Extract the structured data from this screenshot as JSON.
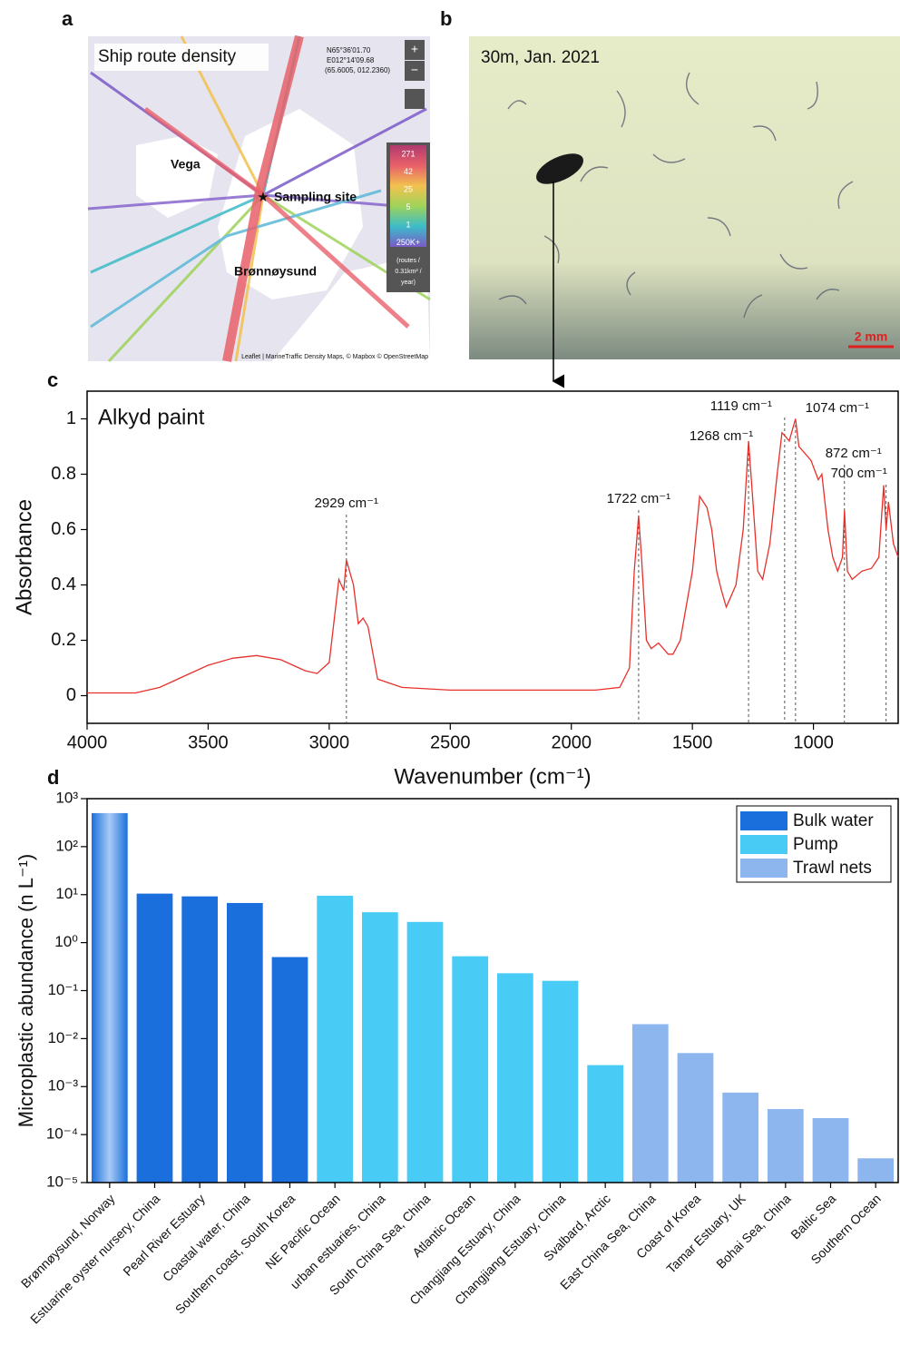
{
  "panel_labels": [
    "a",
    "b",
    "c",
    "d"
  ],
  "map": {
    "title": "Ship route density",
    "coordinates": [
      "N65°36'01.70",
      "E012°14'09.68",
      "(65.6005, 012.2360)"
    ],
    "zoom": [
      "+",
      "−"
    ],
    "places": [
      "Vega",
      "Sampling site",
      "Brønnøysund"
    ],
    "scale_labels": [
      "271",
      "42",
      "25",
      "5",
      "1",
      "250K+"
    ],
    "scale_unit": [
      "(routes /",
      "0.31km² /",
      "year)"
    ],
    "attribution": "Leaflet | MarineTraffic Density Maps, © Mapbox © OpenStreetMap"
  },
  "photo": {
    "caption": "30m, Jan. 2021",
    "scale_bar": "2 mm"
  },
  "chart_data": [
    {
      "type": "line",
      "title": "Alkyd paint",
      "x_label": "Wavenumber (cm⁻¹)",
      "y_label": "Absorbance",
      "color": "#e8302a",
      "xlim": [
        4000,
        650
      ],
      "ylim": [
        -0.1,
        1.1
      ],
      "xticks": [
        4000,
        3500,
        3000,
        2500,
        2000,
        1500,
        1000
      ],
      "yticks": [
        0,
        0.2,
        0.4,
        0.6,
        0.8,
        1
      ],
      "x": [
        4000,
        3800,
        3700,
        3600,
        3500,
        3400,
        3300,
        3200,
        3100,
        3050,
        3000,
        2960,
        2940,
        2929,
        2900,
        2880,
        2860,
        2840,
        2800,
        2700,
        2600,
        2500,
        2400,
        2200,
        2000,
        1900,
        1800,
        1760,
        1740,
        1722,
        1710,
        1690,
        1670,
        1640,
        1600,
        1580,
        1550,
        1500,
        1470,
        1455,
        1440,
        1420,
        1400,
        1380,
        1360,
        1340,
        1320,
        1290,
        1268,
        1250,
        1230,
        1210,
        1180,
        1150,
        1130,
        1119,
        1100,
        1074,
        1060,
        1040,
        1010,
        980,
        965,
        940,
        920,
        900,
        880,
        872,
        860,
        840,
        800,
        760,
        730,
        710,
        700,
        690,
        670,
        650
      ],
      "values": [
        0.01,
        0.01,
        0.03,
        0.07,
        0.11,
        0.135,
        0.145,
        0.13,
        0.09,
        0.08,
        0.12,
        0.42,
        0.38,
        0.49,
        0.4,
        0.26,
        0.28,
        0.25,
        0.06,
        0.03,
        0.025,
        0.02,
        0.02,
        0.02,
        0.02,
        0.02,
        0.03,
        0.1,
        0.45,
        0.65,
        0.5,
        0.2,
        0.17,
        0.19,
        0.15,
        0.15,
        0.2,
        0.45,
        0.72,
        0.7,
        0.68,
        0.6,
        0.45,
        0.38,
        0.32,
        0.36,
        0.4,
        0.6,
        0.92,
        0.7,
        0.45,
        0.42,
        0.55,
        0.8,
        0.95,
        0.94,
        0.92,
        1.0,
        0.9,
        0.88,
        0.85,
        0.78,
        0.8,
        0.6,
        0.5,
        0.45,
        0.5,
        0.67,
        0.45,
        0.42,
        0.45,
        0.46,
        0.5,
        0.76,
        0.6,
        0.7,
        0.55,
        0.5
      ],
      "annotations": [
        {
          "text": "2929 cm⁻¹",
          "x": 2929
        },
        {
          "text": "1722 cm⁻¹",
          "x": 1722
        },
        {
          "text": "1268 cm⁻¹",
          "x": 1268
        },
        {
          "text": "1119 cm⁻¹",
          "x": 1119
        },
        {
          "text": "1074 cm⁻¹",
          "x": 1074
        },
        {
          "text": "872 cm⁻¹",
          "x": 872
        },
        {
          "text": "700 cm⁻¹",
          "x": 700
        }
      ]
    },
    {
      "type": "bar",
      "y_label": "Microplastic abundance (n L⁻¹)",
      "log_scale": true,
      "legend": "upper right",
      "ylim": [
        1e-05,
        1000
      ],
      "yticks": [
        {
          "value": 1e-05,
          "label": "10⁻⁵"
        },
        {
          "value": 0.0001,
          "label": "10⁻⁴"
        },
        {
          "value": 0.001,
          "label": "10⁻³"
        },
        {
          "value": 0.01,
          "label": "10⁻²"
        },
        {
          "value": 0.1,
          "label": "10⁻¹"
        },
        {
          "value": 1,
          "label": "10⁰"
        },
        {
          "value": 10,
          "label": "10¹"
        },
        {
          "value": 100,
          "label": "10²"
        },
        {
          "value": 1000,
          "label": "10³"
        }
      ],
      "categories": [
        "Brønnøysund, Norway",
        "Estuarine oyster nursery, China",
        "Pearl River Estuary",
        "Coastal water, China",
        "Southern coast, South Korea",
        "NE Pacific Ocean",
        "urban estuaries, China",
        "South China Sea, China",
        "Atlantic Ocean",
        "Changjiang Estuary, China",
        "Changjiang Estuary, China",
        "Svalbard, Arctic",
        "East China Sea, China",
        "Coast of Korea",
        "Tamar Estuary, UK",
        "Bohai Sea, China",
        "Baltic Sea",
        "Southern Ocean"
      ],
      "series": [
        {
          "name": "Bulk water",
          "color": "#1b6fdd",
          "values": [
            500,
            10.5,
            9.2,
            6.7,
            0.5,
            null,
            null,
            null,
            null,
            null,
            null,
            null,
            null,
            null,
            null,
            null,
            null,
            null
          ]
        },
        {
          "name": "Pump",
          "color": "#48cbf4",
          "values": [
            null,
            null,
            null,
            null,
            null,
            9.5,
            4.3,
            2.7,
            0.52,
            0.23,
            0.16,
            0.0028,
            null,
            null,
            null,
            null,
            null,
            null
          ]
        },
        {
          "name": "Trawl nets",
          "color": "#8db6ef",
          "values": [
            null,
            null,
            null,
            null,
            null,
            null,
            null,
            null,
            null,
            null,
            null,
            null,
            0.02,
            0.005,
            0.00075,
            0.00034,
            0.00022,
            3.2e-05
          ]
        }
      ]
    }
  ]
}
